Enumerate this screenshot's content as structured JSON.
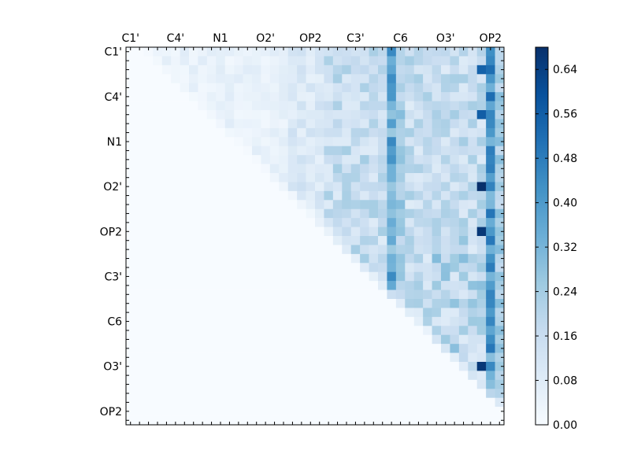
{
  "chart_data": {
    "type": "heatmap",
    "colormap": "Blues",
    "n": 42,
    "x_tick_labels": [
      "C1'",
      "C4'",
      "N1",
      "O2'",
      "OP2",
      "C3'",
      "C6",
      "O3'",
      "OP2"
    ],
    "y_tick_labels": [
      "C1'",
      "C4'",
      "N1",
      "O2'",
      "OP2",
      "C3'",
      "C6",
      "O3'",
      "OP2"
    ],
    "label_index_step": 5,
    "colorbar": {
      "min": 0.0,
      "max": 0.68,
      "ticks": [
        0.0,
        0.08,
        0.16,
        0.24,
        0.32,
        0.4,
        0.48,
        0.56,
        0.64
      ],
      "tick_labels": [
        "0.00",
        "0.08",
        "0.16",
        "0.24",
        "0.32",
        "0.40",
        "0.48",
        "0.56",
        "0.64"
      ]
    },
    "highlighted_columns": [
      {
        "index": 29,
        "value": 0.45
      },
      {
        "index": 30,
        "value": 0.3
      },
      {
        "index": 40,
        "value": 0.52
      },
      {
        "index": 41,
        "value": 0.3
      }
    ],
    "peak_values": [
      {
        "row": 15,
        "col": 39,
        "value": 0.68
      },
      {
        "row": 20,
        "col": 39,
        "value": 0.66
      },
      {
        "row": 35,
        "col": 39,
        "value": 0.66
      },
      {
        "row": 2,
        "col": 39,
        "value": 0.55
      },
      {
        "row": 7,
        "col": 39,
        "value": 0.56
      }
    ]
  }
}
